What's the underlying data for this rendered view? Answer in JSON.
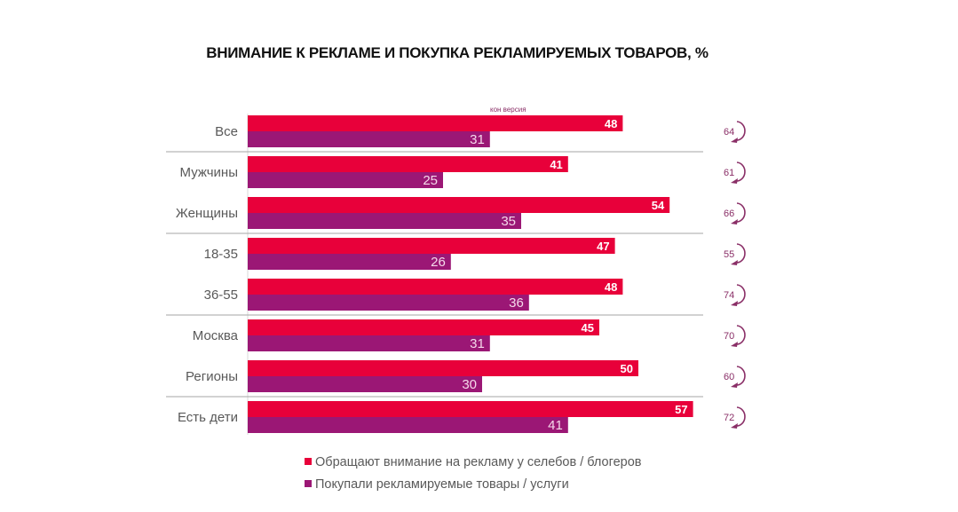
{
  "chart_data": {
    "type": "bar",
    "orientation": "horizontal",
    "title": "ВНИМАНИЕ К РЕКЛАМЕ И ПОКУПКА РЕКЛАМИРУЕМЫХ ТОВАРОВ, %",
    "categories": [
      "Все",
      "Мужчины",
      "Женщины",
      "18-35",
      "36-55",
      "Москва",
      "Регионы",
      "Есть дети"
    ],
    "series": [
      {
        "name": "Обращают внимание на рекламу у селебов / блогеров",
        "color": "#E8003A",
        "values": [
          48,
          41,
          54,
          47,
          48,
          45,
          50,
          57
        ]
      },
      {
        "name": "Покупали рекламируемые товары / услуги",
        "color": "#9B1775",
        "values": [
          31,
          25,
          35,
          26,
          36,
          31,
          30,
          41
        ]
      }
    ],
    "conversion": {
      "label": "кон версия",
      "values": [
        64,
        61,
        66,
        55,
        74,
        70,
        60,
        72
      ],
      "color": "#8A2F67"
    },
    "group_separators_after": [
      "Все",
      "Женщины",
      "36-55",
      "Регионы"
    ],
    "xlim": [
      0,
      57
    ],
    "legend_position": "bottom",
    "grid": false
  }
}
